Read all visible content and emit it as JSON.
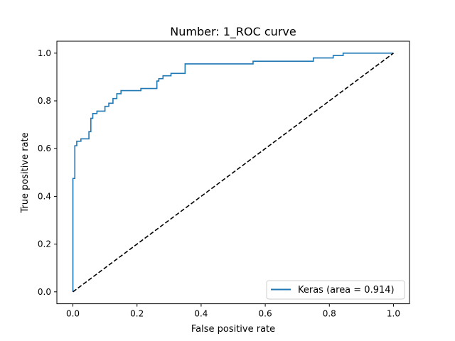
{
  "chart_data": {
    "type": "line",
    "title": "Number:  1_ROC curve",
    "xlabel": "False positive rate",
    "ylabel": "True positive rate",
    "xlim": [
      -0.05,
      1.05
    ],
    "ylim": [
      -0.05,
      1.05
    ],
    "xticks": [
      0.0,
      0.2,
      0.4,
      0.6,
      0.8,
      1.0
    ],
    "yticks": [
      0.0,
      0.2,
      0.4,
      0.6,
      0.8,
      1.0
    ],
    "xtick_labels": [
      "0.0",
      "0.2",
      "0.4",
      "0.6",
      "0.8",
      "1.0"
    ],
    "ytick_labels": [
      "0.0",
      "0.2",
      "0.4",
      "0.6",
      "0.8",
      "1.0"
    ],
    "grid": false,
    "legend_position": "lower right",
    "series": [
      {
        "name": "Keras (area = 0.914)",
        "color": "#1f77b4",
        "style": "solid",
        "x": [
          0.0,
          0.0,
          0.006,
          0.006,
          0.012,
          0.012,
          0.025,
          0.025,
          0.05,
          0.05,
          0.056,
          0.056,
          0.062,
          0.062,
          0.075,
          0.075,
          0.1,
          0.1,
          0.112,
          0.112,
          0.125,
          0.125,
          0.137,
          0.137,
          0.15,
          0.15,
          0.156,
          0.156,
          0.212,
          0.212,
          0.262,
          0.262,
          0.268,
          0.268,
          0.281,
          0.281,
          0.306,
          0.306,
          0.35,
          0.35,
          0.562,
          0.562,
          0.75,
          0.75,
          0.812,
          0.812,
          0.843,
          0.843,
          1.0
        ],
        "y": [
          0.0,
          0.475,
          0.475,
          0.612,
          0.612,
          0.631,
          0.631,
          0.641,
          0.641,
          0.671,
          0.671,
          0.727,
          0.727,
          0.747,
          0.747,
          0.757,
          0.757,
          0.777,
          0.777,
          0.79,
          0.79,
          0.81,
          0.81,
          0.83,
          0.83,
          0.843,
          0.843,
          0.843,
          0.843,
          0.852,
          0.852,
          0.883,
          0.883,
          0.893,
          0.893,
          0.905,
          0.905,
          0.915,
          0.915,
          0.955,
          0.955,
          0.966,
          0.966,
          0.98,
          0.98,
          0.99,
          0.99,
          1.0,
          1.0
        ]
      },
      {
        "name": "",
        "color": "#000000",
        "style": "dashed",
        "x": [
          0.0,
          1.0
        ],
        "y": [
          0.0,
          1.0
        ]
      }
    ]
  }
}
